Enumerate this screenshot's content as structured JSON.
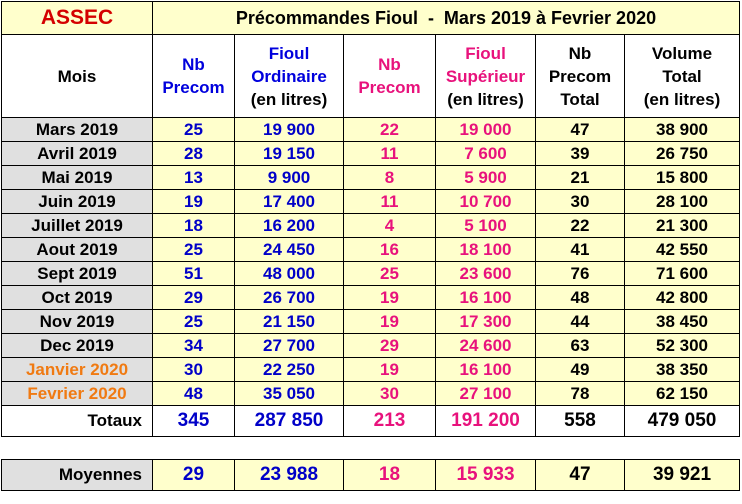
{
  "header": {
    "brand": "ASSEC",
    "title": "Précommandes Fioul  -  Mars 2019 à Fevrier 2020"
  },
  "columns": {
    "mois": "Mois",
    "nb_precom_ord": [
      "Nb",
      "Precom"
    ],
    "fioul_ordinaire": [
      "Fioul",
      "Ordinaire",
      "(en litres)"
    ],
    "nb_precom_sup": [
      "Nb",
      "Precom"
    ],
    "fioul_superieur": [
      "Fioul",
      "Supérieur",
      "(en litres)"
    ],
    "nb_precom_total": [
      "Nb",
      "Precom",
      "Total"
    ],
    "volume_total": [
      "Volume",
      "Total",
      "(en litres)"
    ]
  },
  "colors": {
    "blue": "#0000c8",
    "pink": "#e8127c",
    "orange": "#f07a12",
    "brand_red": "#d40000",
    "yellow_bg": "#ffffcc",
    "gray_bg": "#e0e0e0"
  },
  "rows": [
    {
      "mois": "Mars 2019",
      "nb_ord": "25",
      "ord": "19 900",
      "nb_sup": "22",
      "sup": "19 000",
      "nb_tot": "47",
      "vol": "38 900",
      "highlight": false
    },
    {
      "mois": "Avril 2019",
      "nb_ord": "28",
      "ord": "19 150",
      "nb_sup": "11",
      "sup": "7 600",
      "nb_tot": "39",
      "vol": "26 750",
      "highlight": false
    },
    {
      "mois": "Mai 2019",
      "nb_ord": "13",
      "ord": "9 900",
      "nb_sup": "8",
      "sup": "5 900",
      "nb_tot": "21",
      "vol": "15 800",
      "highlight": false
    },
    {
      "mois": "Juin 2019",
      "nb_ord": "19",
      "ord": "17 400",
      "nb_sup": "11",
      "sup": "10 700",
      "nb_tot": "30",
      "vol": "28 100",
      "highlight": false
    },
    {
      "mois": "Juillet 2019",
      "nb_ord": "18",
      "ord": "16 200",
      "nb_sup": "4",
      "sup": "5 100",
      "nb_tot": "22",
      "vol": "21 300",
      "highlight": false
    },
    {
      "mois": "Aout 2019",
      "nb_ord": "25",
      "ord": "24 450",
      "nb_sup": "16",
      "sup": "18 100",
      "nb_tot": "41",
      "vol": "42 550",
      "highlight": false
    },
    {
      "mois": "Sept 2019",
      "nb_ord": "51",
      "ord": "48 000",
      "nb_sup": "25",
      "sup": "23 600",
      "nb_tot": "76",
      "vol": "71 600",
      "highlight": false
    },
    {
      "mois": "Oct 2019",
      "nb_ord": "29",
      "ord": "26 700",
      "nb_sup": "19",
      "sup": "16 100",
      "nb_tot": "48",
      "vol": "42 800",
      "highlight": false
    },
    {
      "mois": "Nov 2019",
      "nb_ord": "25",
      "ord": "21 150",
      "nb_sup": "19",
      "sup": "17 300",
      "nb_tot": "44",
      "vol": "38 450",
      "highlight": false
    },
    {
      "mois": "Dec 2019",
      "nb_ord": "34",
      "ord": "27 700",
      "nb_sup": "29",
      "sup": "24 600",
      "nb_tot": "63",
      "vol": "52 300",
      "highlight": false
    },
    {
      "mois": "Janvier 2020",
      "nb_ord": "30",
      "ord": "22 250",
      "nb_sup": "19",
      "sup": "16 100",
      "nb_tot": "49",
      "vol": "38 350",
      "highlight": true
    },
    {
      "mois": "Fevrier 2020",
      "nb_ord": "48",
      "ord": "35 050",
      "nb_sup": "30",
      "sup": "27 100",
      "nb_tot": "78",
      "vol": "62 150",
      "highlight": true
    }
  ],
  "totaux": {
    "label": "Totaux",
    "nb_ord": "345",
    "ord": "287 850",
    "nb_sup": "213",
    "sup": "191 200",
    "nb_tot": "558",
    "vol": "479 050"
  },
  "moyennes": {
    "label": "Moyennes",
    "nb_ord": "29",
    "ord": "23 988",
    "nb_sup": "18",
    "sup": "15 933",
    "nb_tot": "47",
    "vol": "39 921"
  }
}
